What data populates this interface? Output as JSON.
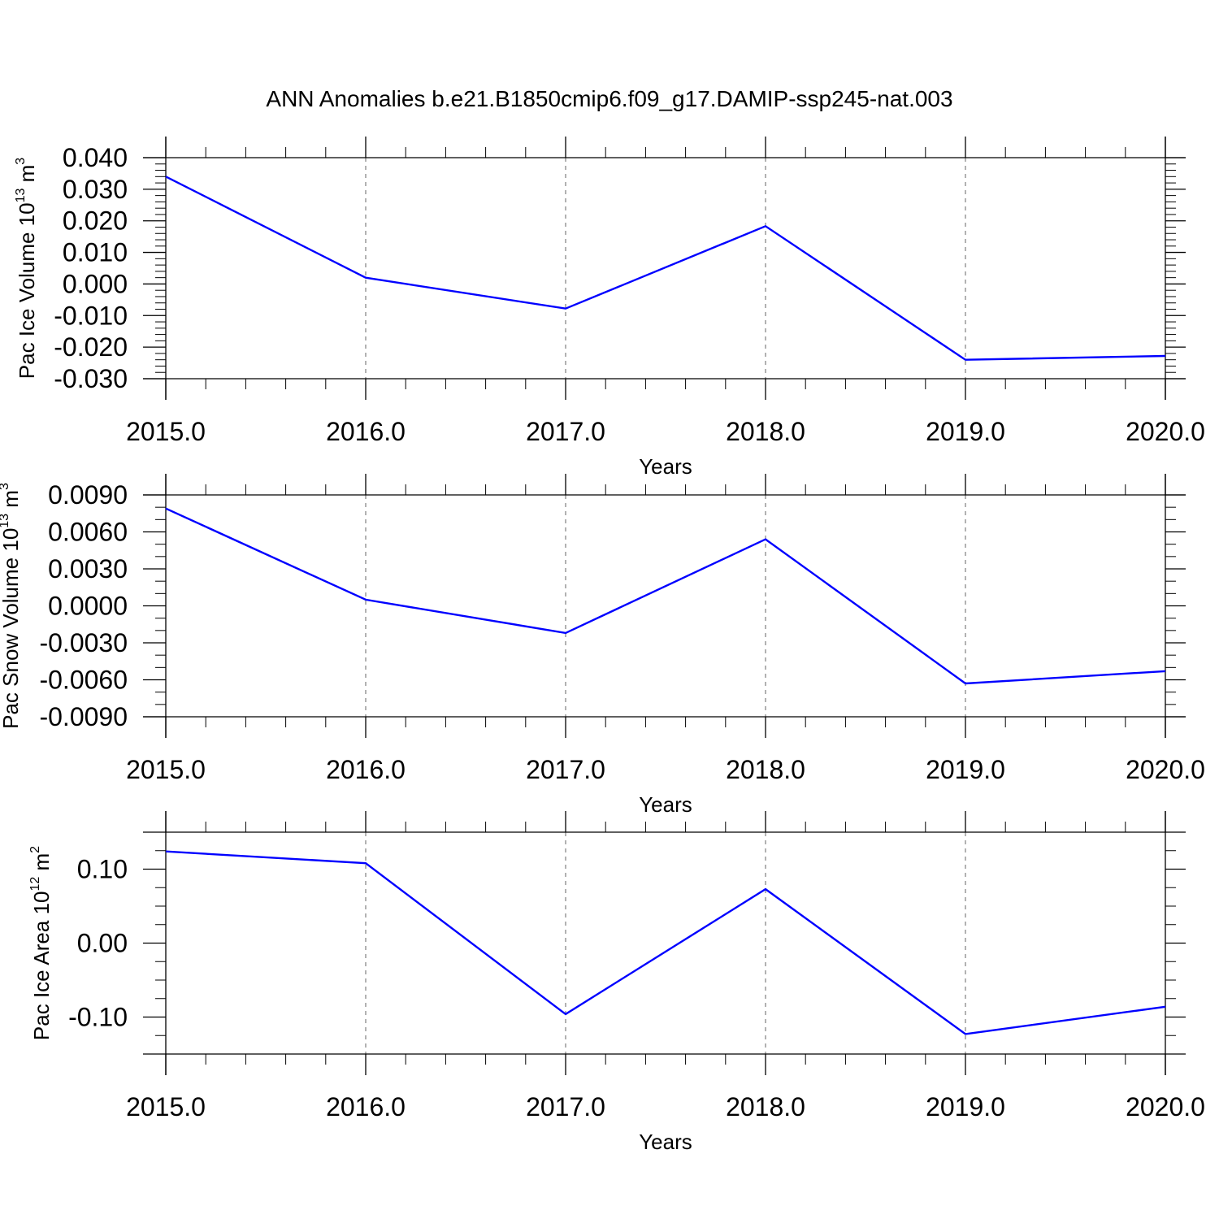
{
  "figure_title": "ANN Anomalies b.e21.B1850cmip6.f09_g17.DAMIP-ssp245-nat.003",
  "line_color": "#0000ff",
  "grid_color": "#7f7f7f",
  "chart_data": [
    {
      "type": "line",
      "ylabel": "Pac Ice Volume 10",
      "ylabel_exp": "13",
      "ylabel_unit": " m",
      "ylabel_unit_exp": "3",
      "xlabel": "Years",
      "xlim": [
        2015,
        2020
      ],
      "ylim": [
        -0.03,
        0.04
      ],
      "x_ticks": [
        2015,
        2016,
        2017,
        2018,
        2019,
        2020
      ],
      "x_tick_labels": [
        "2015.0",
        "2016.0",
        "2017.0",
        "2018.0",
        "2019.0",
        "2020.0"
      ],
      "y_ticks": [
        -0.03,
        -0.02,
        -0.01,
        0.0,
        0.01,
        0.02,
        0.03,
        0.04
      ],
      "y_tick_labels": [
        "-0.030",
        "-0.020",
        "-0.010",
        "0.000",
        "0.010",
        "0.020",
        "0.030",
        "0.040"
      ],
      "y_minor_step": 0.002,
      "grid": "vertical dashed at major x ticks",
      "series": [
        {
          "x": [
            2015,
            2016,
            2017,
            2018,
            2019,
            2020
          ],
          "values": [
            0.034,
            0.002,
            -0.0078,
            0.0183,
            -0.024,
            -0.0228
          ]
        }
      ]
    },
    {
      "type": "line",
      "ylabel": "Pac Snow Volume 10",
      "ylabel_exp": "13",
      "ylabel_unit": " m",
      "ylabel_unit_exp": "3",
      "xlabel": "Years",
      "xlim": [
        2015,
        2020
      ],
      "ylim": [
        -0.009,
        0.009
      ],
      "x_ticks": [
        2015,
        2016,
        2017,
        2018,
        2019,
        2020
      ],
      "x_tick_labels": [
        "2015.0",
        "2016.0",
        "2017.0",
        "2018.0",
        "2019.0",
        "2020.0"
      ],
      "y_ticks": [
        -0.009,
        -0.006,
        -0.003,
        0.0,
        0.003,
        0.006,
        0.009
      ],
      "y_tick_labels": [
        "-0.0090",
        "-0.0060",
        "-0.0030",
        "0.0000",
        "0.0030",
        "0.0060",
        "0.0090"
      ],
      "y_minor_step": 0.001,
      "grid": "vertical dashed at major x ticks",
      "series": [
        {
          "x": [
            2015,
            2016,
            2017,
            2018,
            2019,
            2020
          ],
          "values": [
            0.0079,
            0.0005,
            -0.0022,
            0.0054,
            -0.0063,
            -0.0053
          ]
        }
      ]
    },
    {
      "type": "line",
      "ylabel": "Pac Ice Area 10",
      "ylabel_exp": "12",
      "ylabel_unit": " m",
      "ylabel_unit_exp": "2",
      "xlabel": "Years",
      "xlim": [
        2015,
        2020
      ],
      "ylim": [
        -0.15,
        0.15
      ],
      "x_ticks": [
        2015,
        2016,
        2017,
        2018,
        2019,
        2020
      ],
      "x_tick_labels": [
        "2015.0",
        "2016.0",
        "2017.0",
        "2018.0",
        "2019.0",
        "2020.0"
      ],
      "y_ticks": [
        -0.1,
        0.0,
        0.1
      ],
      "y_tick_labels": [
        "-0.10",
        "0.00",
        "0.10"
      ],
      "y_minor_step": 0.025,
      "grid": "vertical dashed at major x ticks",
      "series": [
        {
          "x": [
            2015,
            2016,
            2017,
            2018,
            2019,
            2020
          ],
          "values": [
            0.124,
            0.108,
            -0.096,
            0.073,
            -0.123,
            -0.086
          ]
        }
      ]
    }
  ]
}
